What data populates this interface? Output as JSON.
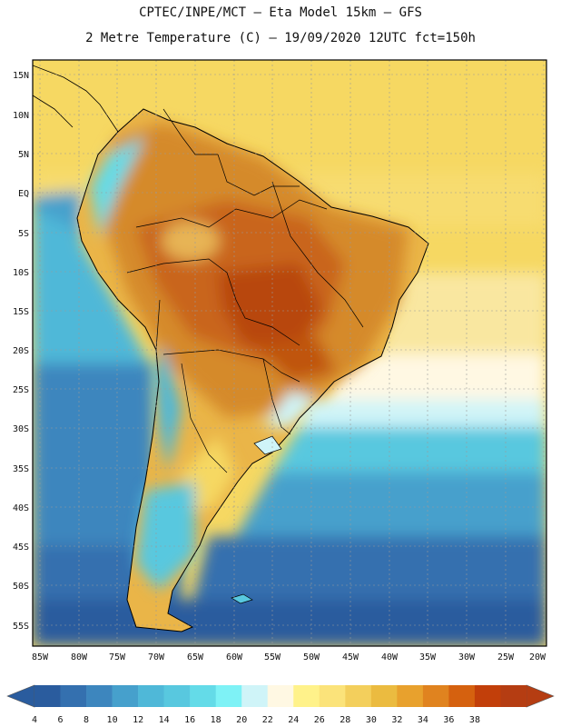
{
  "header": {
    "line1": "CPTEC/INPE/MCT –  Eta Model 15km – GFS",
    "line2": "2 Metre Temperature (C) – 19/09/2020 12UTC fct=150h"
  },
  "map": {
    "lat_labels": [
      "15N",
      "10N",
      "5N",
      "EQ",
      "5S",
      "10S",
      "15S",
      "20S",
      "25S",
      "30S",
      "35S",
      "40S",
      "45S",
      "50S",
      "55S"
    ],
    "lon_labels": [
      "85W",
      "80W",
      "75W",
      "70W",
      "65W",
      "60W",
      "55W",
      "50W",
      "45W",
      "40W",
      "35W",
      "30W",
      "25W",
      "20W"
    ]
  },
  "colorbar": {
    "values": [
      "4",
      "6",
      "8",
      "10",
      "12",
      "14",
      "16",
      "18",
      "20",
      "22",
      "24",
      "26",
      "28",
      "30",
      "32",
      "34",
      "36",
      "38"
    ],
    "colors": [
      "#2a5c9e",
      "#3470af",
      "#3d86be",
      "#46a0cc",
      "#4fb8d8",
      "#58c8df",
      "#64dbe8",
      "#7ef2f6",
      "#cff4f8",
      "#fff8e3",
      "#fff28a",
      "#fbe37a",
      "#f3cf5c",
      "#ebbb40",
      "#e8a12d",
      "#e0831f",
      "#d5610f",
      "#c23f0a",
      "#b53d12"
    ]
  }
}
